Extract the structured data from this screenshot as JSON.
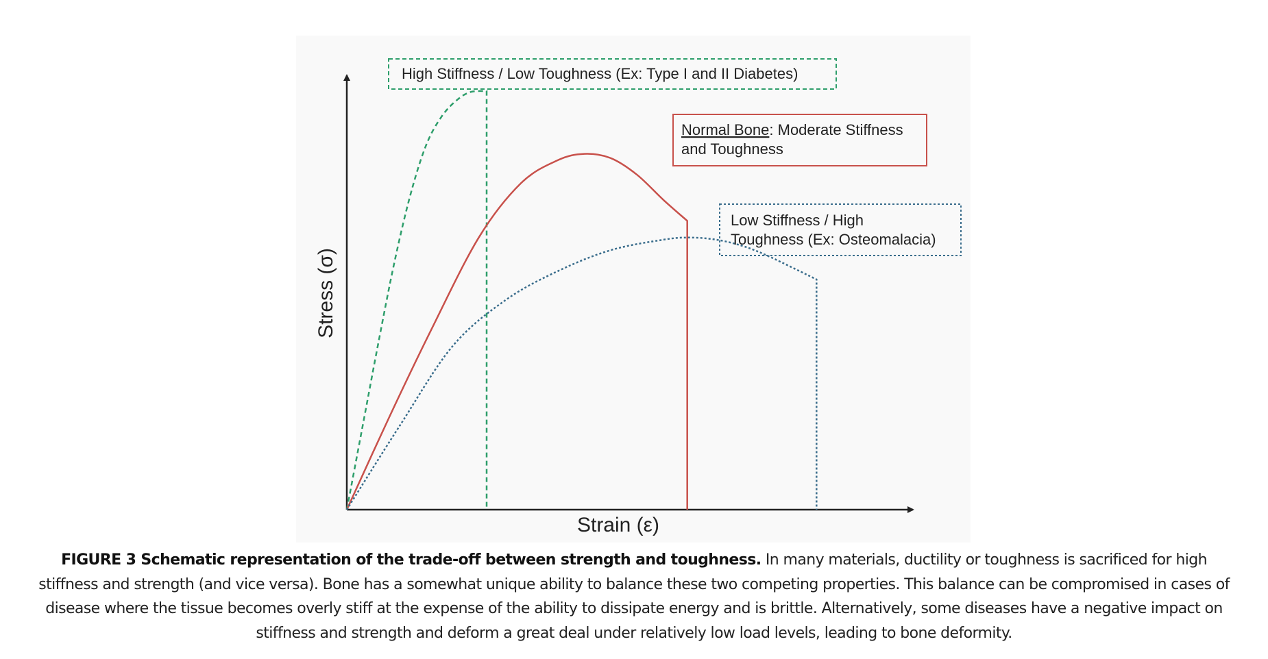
{
  "chart_data": {
    "type": "line",
    "title": "",
    "xlabel": "Strain (ε)",
    "ylabel": "Stress (σ)",
    "xlim": [
      0,
      10
    ],
    "ylim": [
      0,
      10
    ],
    "schematic": true,
    "grid": false,
    "series": [
      {
        "label": "High Stiffness / Low Toughness (Ex: Type I and II Diabetes)",
        "color": "#2e9e6b",
        "line_style": "dashed",
        "x": [
          0,
          0.3,
          0.6,
          0.9,
          1.2,
          1.5,
          1.8,
          2.1,
          2.35,
          2.65,
          2.65
        ],
        "y": [
          0,
          2.0,
          4.0,
          5.9,
          7.5,
          8.7,
          9.4,
          9.8,
          9.98,
          10.0,
          0
        ]
      },
      {
        "label": "Normal Bone: Moderate Stiffness and Toughness",
        "label_underlined_part": "Normal Bone",
        "color": "#c8514b",
        "line_style": "solid",
        "x": [
          0,
          0.8,
          1.6,
          2.5,
          3.3,
          4.0,
          4.5,
          5.0,
          5.5,
          6.0,
          6.45,
          6.45
        ],
        "y": [
          0,
          2.2,
          4.3,
          6.5,
          7.8,
          8.35,
          8.5,
          8.4,
          8.0,
          7.4,
          6.9,
          0
        ]
      },
      {
        "label": "Low Stiffness / High Toughness (Ex: Osteomalacia)",
        "color": "#3a6d8c",
        "line_style": "dotted",
        "x": [
          0,
          1.0,
          2.0,
          3.0,
          4.0,
          5.0,
          6.0,
          6.5,
          7.0,
          7.5,
          8.0,
          8.9,
          8.9
        ],
        "y": [
          0,
          2.0,
          3.9,
          5.0,
          5.7,
          6.2,
          6.45,
          6.5,
          6.45,
          6.3,
          6.05,
          5.5,
          0
        ]
      }
    ]
  },
  "labels": {
    "high_stiffness": "High Stiffness / Low Toughness (Ex: Type I and II Diabetes)",
    "normal_bone_underlined": "Normal Bone",
    "normal_bone_rest": ": Moderate Stiffness",
    "normal_bone_line2": "and Toughness",
    "low_stiffness_line1": "Low Stiffness / High",
    "low_stiffness_line2": "Toughness (Ex: Osteomalacia)"
  },
  "caption": {
    "bold": "FIGURE 3 Schematic representation of the trade-off between strength and toughness.",
    "text": " In many materials, ductility or toughness is sacrificed for high stiffness and strength (and vice versa). Bone has a somewhat unique ability to balance these two competing properties. This balance can be compromised in cases of disease where the tissue becomes overly stiff at the expense of the ability to dissipate energy and is brittle. Alternatively, some diseases have a negative impact on stiffness and strength and deform a great deal under relatively low load levels, leading to bone deformity."
  },
  "colors": {
    "green": "#2e9e6b",
    "red": "#c8514b",
    "blue": "#3a6d8c",
    "axis": "#222222"
  }
}
